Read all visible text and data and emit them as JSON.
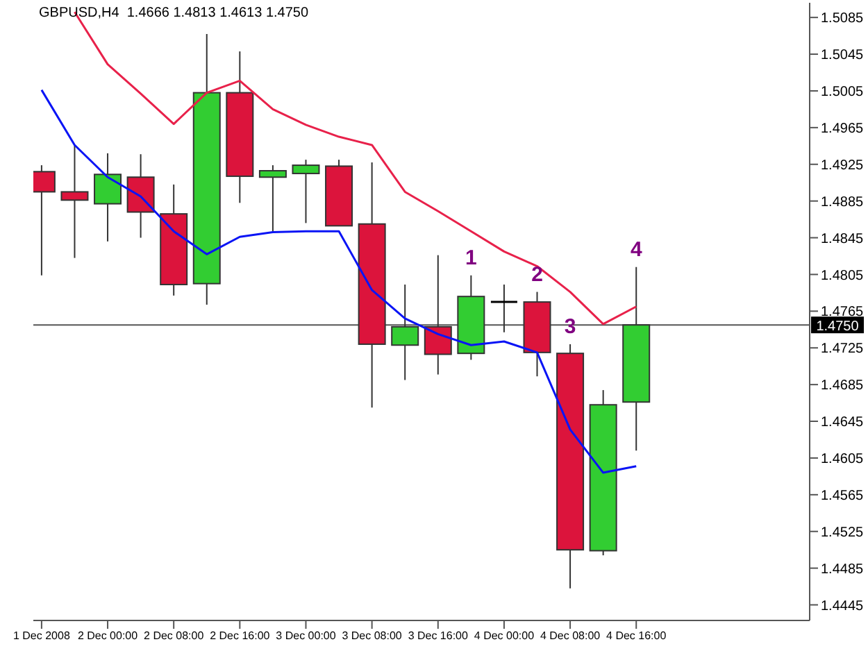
{
  "chart_data": {
    "type": "candlestick",
    "title": "GBPUSD,H4  1.4666 1.4813 1.4613 1.4750",
    "x": [
      "2008-12-01T16:00",
      "2008-12-01T20:00",
      "2008-12-02T00:00",
      "2008-12-02T04:00",
      "2008-12-02T08:00",
      "2008-12-02T12:00",
      "2008-12-02T16:00",
      "2008-12-02T20:00",
      "2008-12-03T00:00",
      "2008-12-03T04:00",
      "2008-12-03T08:00",
      "2008-12-03T12:00",
      "2008-12-03T16:00",
      "2008-12-03T20:00",
      "2008-12-04T00:00",
      "2008-12-04T04:00",
      "2008-12-04T08:00",
      "2008-12-04T12:00",
      "2008-12-04T16:00"
    ],
    "ohlc": [
      [
        1.4917,
        1.4924,
        1.4804,
        1.4895
      ],
      [
        1.4895,
        1.4946,
        1.4823,
        1.4886
      ],
      [
        1.4882,
        1.4937,
        1.4841,
        1.4914
      ],
      [
        1.4911,
        1.4936,
        1.4845,
        1.4873
      ],
      [
        1.4871,
        1.4903,
        1.4782,
        1.4794
      ],
      [
        1.4795,
        1.5067,
        1.4772,
        1.5003
      ],
      [
        1.5003,
        1.5048,
        1.4883,
        1.4912
      ],
      [
        1.4911,
        1.4924,
        1.4852,
        1.4918
      ],
      [
        1.4915,
        1.493,
        1.4861,
        1.4924
      ],
      [
        1.4923,
        1.493,
        1.4858,
        1.4858
      ],
      [
        1.486,
        1.4927,
        1.466,
        1.4729
      ],
      [
        1.4728,
        1.4794,
        1.469,
        1.4748
      ],
      [
        1.4748,
        1.4826,
        1.4696,
        1.4718
      ],
      [
        1.4719,
        1.4804,
        1.4712,
        1.4781
      ],
      [
        1.4775,
        1.4794,
        1.4742,
        1.4775
      ],
      [
        1.4775,
        1.4786,
        1.4694,
        1.472
      ],
      [
        1.4719,
        1.4729,
        1.4463,
        1.4505
      ],
      [
        1.4504,
        1.4679,
        1.4499,
        1.4663
      ],
      [
        1.4666,
        1.4813,
        1.4613,
        1.475
      ]
    ],
    "colors": [
      "#dc143c",
      "#dc143c",
      "#32cd32",
      "#dc143c",
      "#dc143c",
      "#32cd32",
      "#dc143c",
      "#32cd32",
      "#32cd32",
      "#dc143c",
      "#dc143c",
      "#32cd32",
      "#dc143c",
      "#32cd32",
      "#000000",
      "#dc143c",
      "#dc143c",
      "#32cd32",
      "#32cd32"
    ],
    "series": [
      {
        "type": "line",
        "color": "#e8214a",
        "x": [
          "2008-12-01T20:00",
          "2008-12-02T00:00",
          "2008-12-02T04:00",
          "2008-12-02T08:00",
          "2008-12-02T12:00",
          "2008-12-02T16:00",
          "2008-12-02T20:00",
          "2008-12-03T00:00",
          "2008-12-03T04:00",
          "2008-12-03T08:00",
          "2008-12-03T12:00",
          "2008-12-03T16:00",
          "2008-12-03T20:00",
          "2008-12-04T00:00",
          "2008-12-04T04:00",
          "2008-12-04T08:00",
          "2008-12-04T12:00",
          "2008-12-04T16:00"
        ],
        "values": [
          1.5091,
          1.5034,
          1.5002,
          1.4969,
          1.5003,
          1.5016,
          1.4985,
          1.4968,
          1.4955,
          1.4946,
          1.4895,
          1.4874,
          1.4852,
          1.483,
          1.4814,
          1.4786,
          1.4751,
          1.477
        ]
      },
      {
        "type": "line",
        "color": "#0a14f5",
        "x": [
          "2008-12-01T16:00",
          "2008-12-01T20:00",
          "2008-12-02T00:00",
          "2008-12-02T04:00",
          "2008-12-02T08:00",
          "2008-12-02T12:00",
          "2008-12-02T16:00",
          "2008-12-02T20:00",
          "2008-12-03T00:00",
          "2008-12-03T04:00",
          "2008-12-03T08:00",
          "2008-12-03T12:00",
          "2008-12-03T16:00",
          "2008-12-03T20:00",
          "2008-12-04T00:00",
          "2008-12-04T04:00",
          "2008-12-04T08:00",
          "2008-12-04T12:00",
          "2008-12-04T16:00"
        ],
        "values": [
          1.5006,
          1.4946,
          1.4911,
          1.489,
          1.4852,
          1.4827,
          1.4846,
          1.4851,
          1.4852,
          1.4852,
          1.4788,
          1.4757,
          1.474,
          1.4728,
          1.4732,
          1.472,
          1.4636,
          1.4589,
          1.4596
        ]
      }
    ],
    "xlim": [
      "2008-12-01T15:00",
      "2008-12-05T13:00"
    ],
    "xticks": [
      {
        "value": "2008-12-01T16:00",
        "label": "1 Dec 2008"
      },
      {
        "value": "2008-12-02T00:00",
        "label": "2 Dec 00:00"
      },
      {
        "value": "2008-12-02T08:00",
        "label": "2 Dec 08:00"
      },
      {
        "value": "2008-12-02T16:00",
        "label": "2 Dec 16:00"
      },
      {
        "value": "2008-12-03T00:00",
        "label": "3 Dec 00:00"
      },
      {
        "value": "2008-12-03T08:00",
        "label": "3 Dec 08:00"
      },
      {
        "value": "2008-12-03T16:00",
        "label": "3 Dec 16:00"
      },
      {
        "value": "2008-12-04T00:00",
        "label": "4 Dec 00:00"
      },
      {
        "value": "2008-12-04T08:00",
        "label": "4 Dec 08:00"
      },
      {
        "value": "2008-12-04T16:00",
        "label": "4 Dec 16:00"
      }
    ],
    "ylim": [
      1.4428,
      1.5101
    ],
    "yticks": [
      1.5085,
      1.5045,
      1.5005,
      1.4965,
      1.4925,
      1.4885,
      1.4845,
      1.4805,
      1.4765,
      1.4725,
      1.4685,
      1.4645,
      1.4605,
      1.4565,
      1.4525,
      1.4485,
      1.4445
    ],
    "ref_lines": [
      {
        "axis": "y",
        "value": 1.475,
        "label": "1.4750",
        "color": "#555555"
      }
    ],
    "annotations": [
      {
        "text": "1",
        "x": "2008-12-03T20:00",
        "y": 1.4804
      },
      {
        "text": "2",
        "x": "2008-12-04T04:00",
        "y": 1.4786
      },
      {
        "text": "3",
        "x": "2008-12-04T08:00",
        "y": 1.4729
      },
      {
        "text": "4",
        "x": "2008-12-04T16:00",
        "y": 1.4813
      }
    ]
  }
}
